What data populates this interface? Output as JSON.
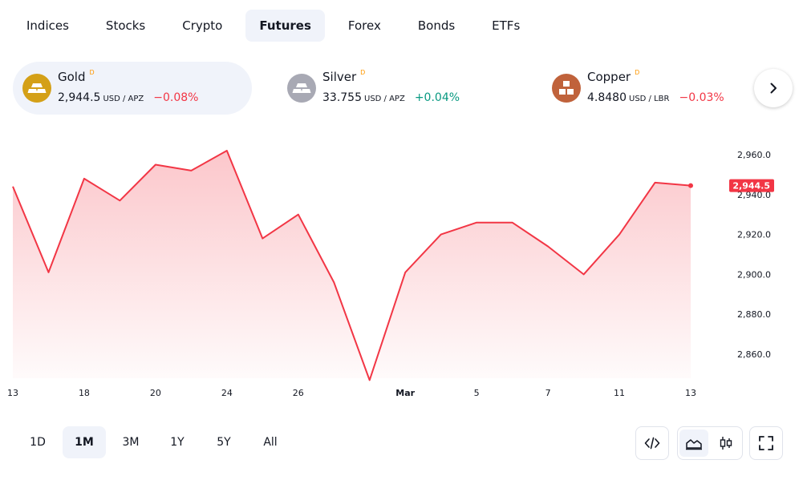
{
  "tabs": [
    {
      "label": "Indices"
    },
    {
      "label": "Stocks"
    },
    {
      "label": "Crypto"
    },
    {
      "label": "Futures",
      "active": true
    },
    {
      "label": "Forex"
    },
    {
      "label": "Bonds"
    },
    {
      "label": "ETFs"
    }
  ],
  "instruments": [
    {
      "name": "Gold",
      "flag": "D",
      "price": "2,944.5",
      "unit": "USD / APZ",
      "change": "−0.08%",
      "direction": "down",
      "color": "#d4a017"
    },
    {
      "name": "Silver",
      "flag": "D",
      "price": "33.755",
      "unit": "USD / APZ",
      "change": "+0.04%",
      "direction": "up",
      "color": "#a8a9b4"
    },
    {
      "name": "Copper",
      "flag": "D",
      "price": "4.8480",
      "unit": "USD / LBR",
      "change": "−0.03%",
      "direction": "down",
      "color": "#c0623b"
    }
  ],
  "ranges": [
    {
      "label": "1D"
    },
    {
      "label": "1M",
      "active": true
    },
    {
      "label": "3M"
    },
    {
      "label": "1Y"
    },
    {
      "label": "5Y"
    },
    {
      "label": "All"
    }
  ],
  "colors": {
    "line": "#f23645",
    "up": "#089981",
    "down": "#f23645",
    "accent_bg": "#f0f3fa"
  },
  "icons": [
    "chevron-right-icon",
    "embed-code-icon",
    "area-chart-icon",
    "candlestick-icon",
    "fullscreen-icon"
  ],
  "chart_data": {
    "type": "area",
    "series": [
      {
        "values": [
          2944,
          2901,
          2948,
          2937,
          2955,
          2952,
          2962,
          2918,
          2930,
          2896,
          2847,
          2901,
          2920,
          2926,
          2926,
          2914,
          2900,
          2920,
          2946,
          2944.5
        ]
      }
    ],
    "x_index": [
      0,
      1,
      2,
      3,
      4,
      5,
      6,
      7,
      8,
      9,
      10,
      11,
      12,
      13,
      14,
      15,
      16,
      17,
      18,
      19
    ],
    "x_ticks": [
      {
        "i": 0,
        "label": "13"
      },
      {
        "i": 2,
        "label": "18"
      },
      {
        "i": 4,
        "label": "20"
      },
      {
        "i": 6,
        "label": "24"
      },
      {
        "i": 8,
        "label": "26"
      },
      {
        "i": 11,
        "label": "Mar",
        "bold": true
      },
      {
        "i": 13,
        "label": "5"
      },
      {
        "i": 15,
        "label": "7"
      },
      {
        "i": 17,
        "label": "11"
      },
      {
        "i": 19,
        "label": "13"
      }
    ],
    "y_ticks": [
      "2,960.0",
      "2,940.0",
      "2,920.0",
      "2,900.0",
      "2,880.0",
      "2,860.0"
    ],
    "y_tick_values": [
      2960,
      2940,
      2920,
      2900,
      2880,
      2860
    ],
    "ylim": [
      2847,
      2967
    ],
    "last_price_label": "2,944.5",
    "grid": false
  }
}
